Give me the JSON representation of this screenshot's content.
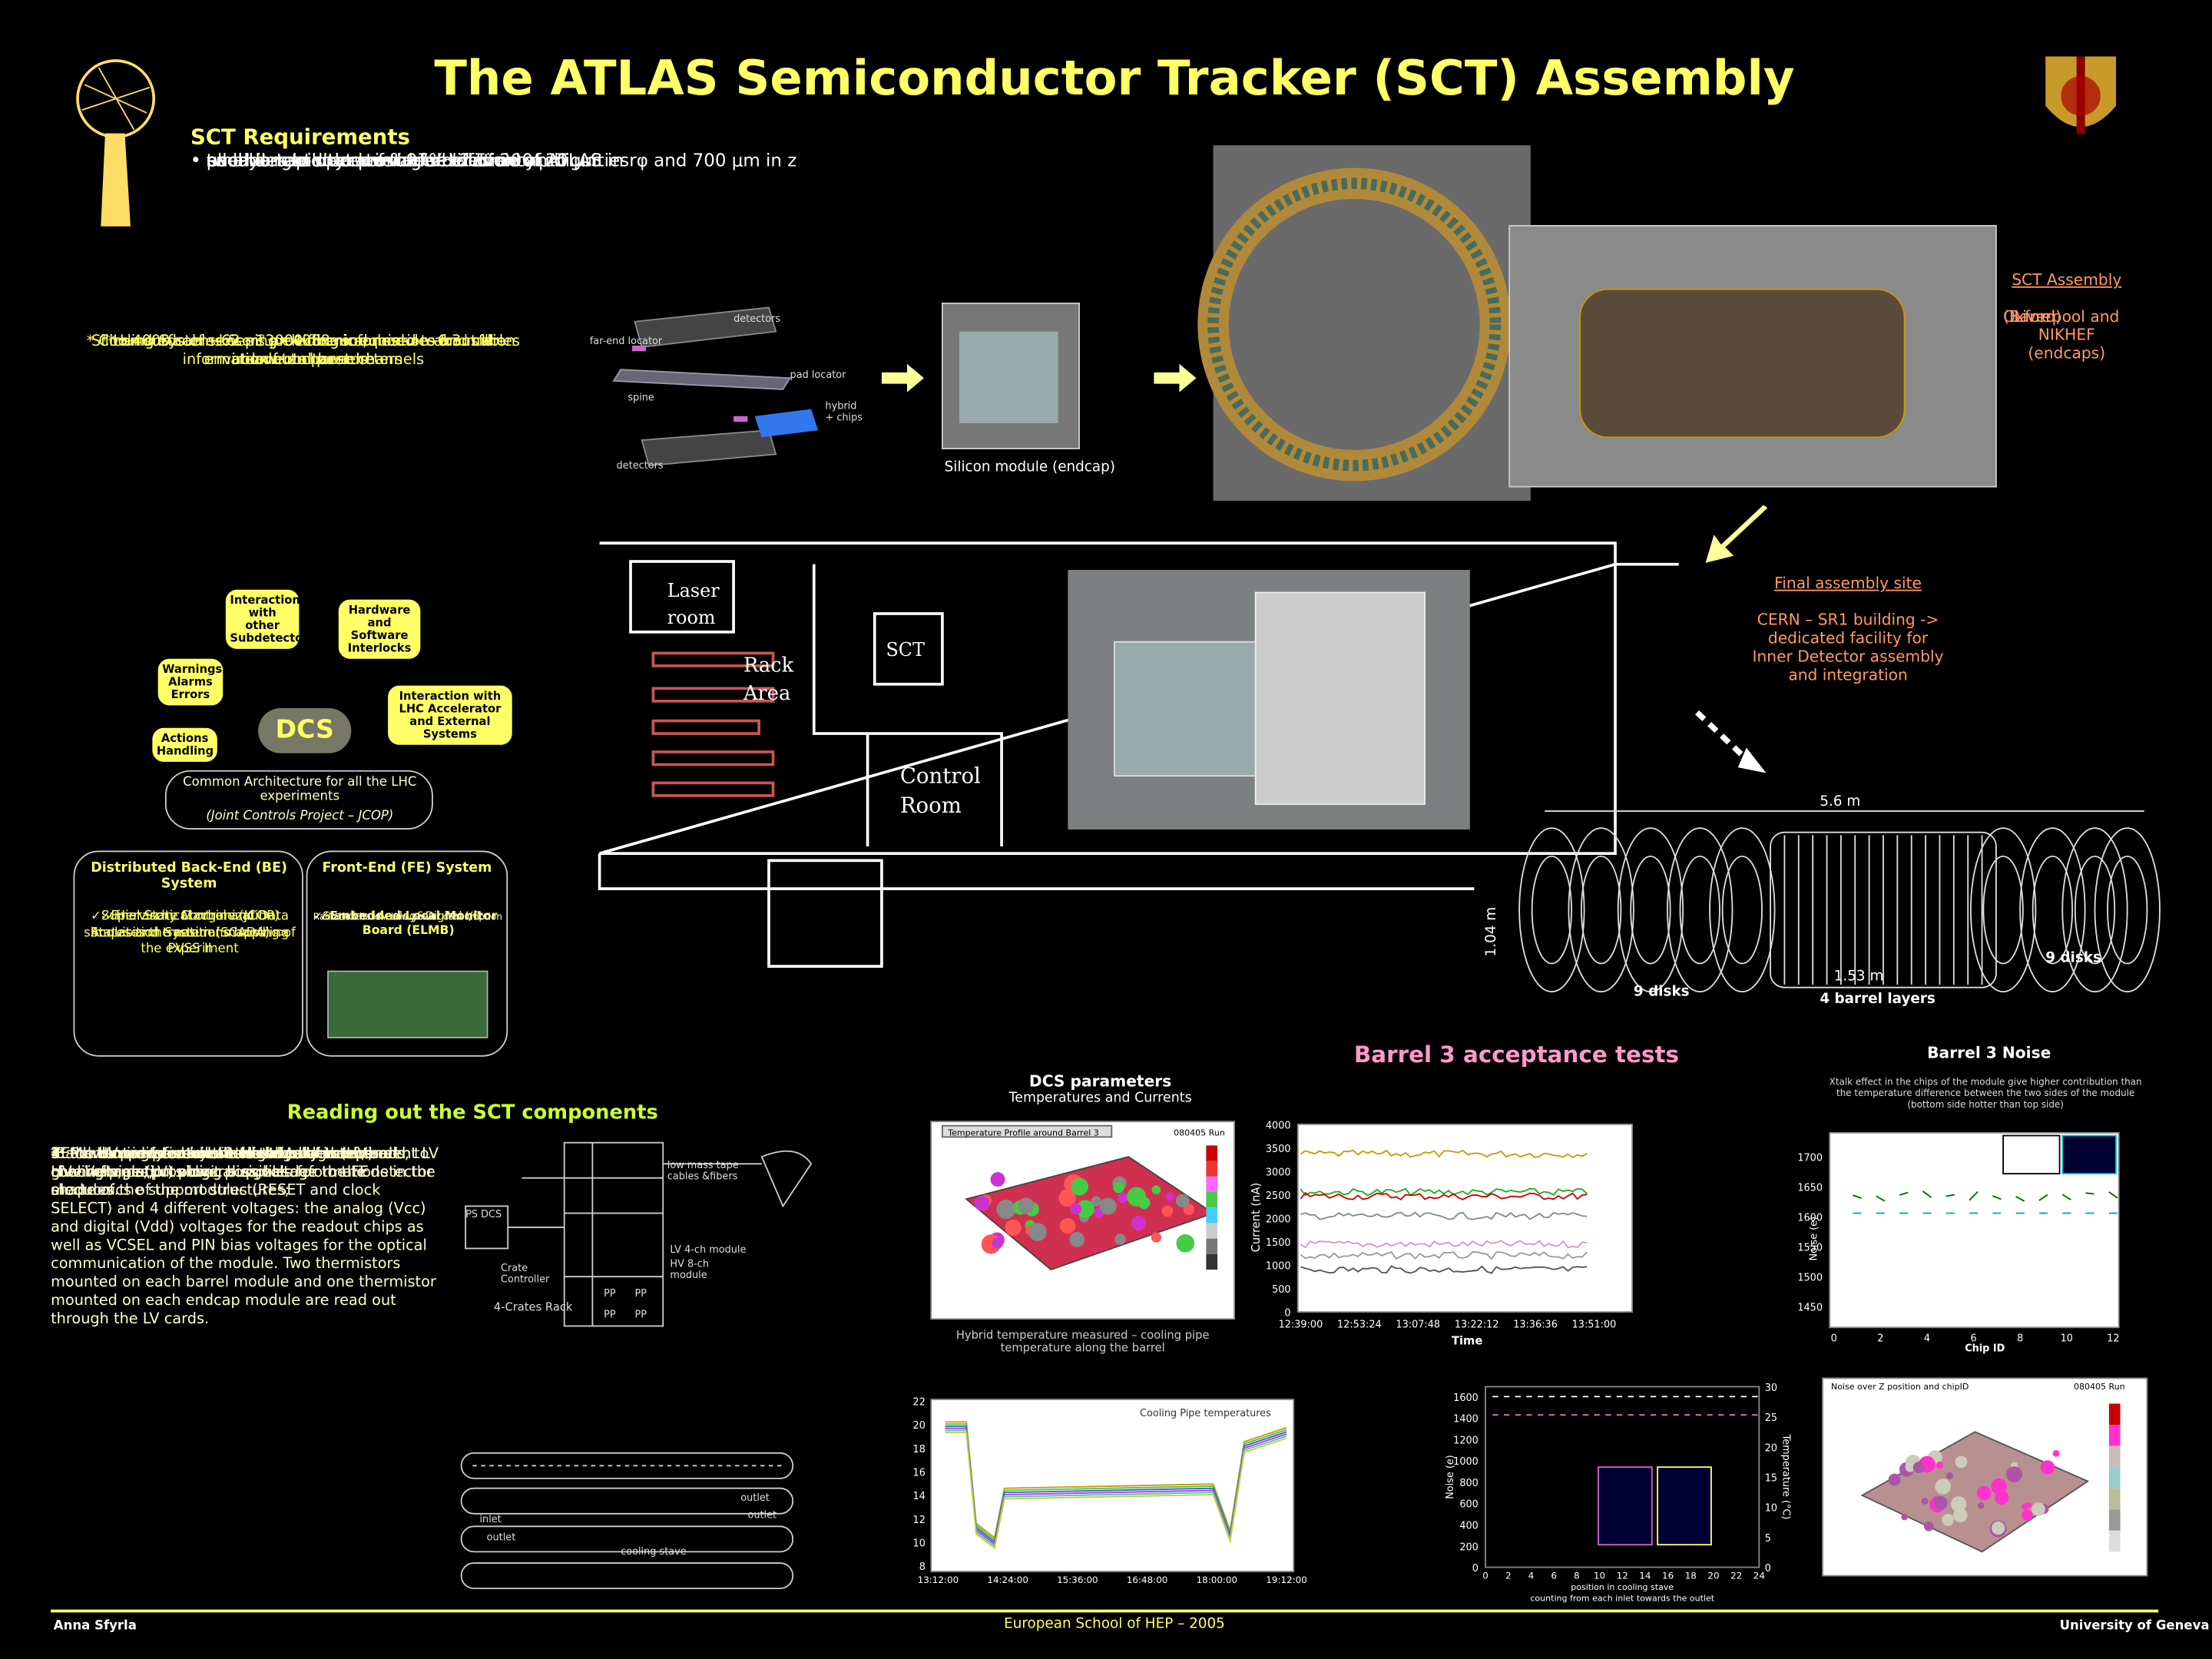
{
  "header": {
    "title": "The ATLAS Semiconductor Tracker (SCT) Assembly"
  },
  "requirements": {
    "heading": "SCT Requirements",
    "items": [
      "• pseudo-rapidity coverage: ±2.5",
      "• small angle stereo in order to avoid ambiguities",
      "• each detector to provide resolution of 20 μm in rφ and 700 μm in z",
      "• two-hit resolution of the order of 200 μm",
      "• each detector at least 97% efficiency",
      "• all layers to operate for full lifetime of ATLAS"
    ]
  },
  "notes": [
    "Silicon surface: ~62 m² -> 4088 modules -> ~6.3 million readout channels",
    "* ~4000 cables & ~13000 fibers required to transfer information from these channels",
    "* Cooling System keeping electronics, modules and cables at low temperature",
    "* Hundreds of sensors providing information about the environmental parameters"
  ],
  "module": {
    "labels": [
      "detectors",
      "far-end locator",
      "pad locator",
      "spine",
      "hybrid + chips",
      "detectors"
    ],
    "caption": "Silicon module (endcap)"
  },
  "sct_assembly": {
    "heading": "SCT Assembly",
    "lines": [
      "Oxford",
      "(Barrel)",
      "Liverpool and NIKHEF (endcaps)"
    ]
  },
  "final_site": {
    "heading": "Final assembly site",
    "text": "CERN – SR1 building -> dedicated facility for Inner Detector assembly and integration"
  },
  "floorplan": {
    "labels": [
      "Laser room",
      "Rack Area",
      "SCT",
      "Control Room"
    ]
  },
  "barrel": {
    "length": "5.6 m",
    "diameter": "1.04 m",
    "barrel_length": "1.53 m",
    "disks_left": "9 disks",
    "disks_right": "9 disks",
    "layers": "4 barrel layers"
  },
  "dcs": {
    "center": "DCS",
    "bubbles": [
      "Interaction with other Subdetectors",
      "Hardware and Software Interlocks",
      "Warnings Alarms Errors",
      "Interaction with LHC Accelerator and External Systems",
      "Actions Handling"
    ],
    "common": [
      "Common Architecture for all the LHC experiments",
      "(Joint Controls Project – JCOP)"
    ],
    "be": {
      "title": "Distributed Back-End (BE) System",
      "items": [
        "✓Supervisory Control and Data Acquisition System (SCADA) -> PVSS II",
        "✓Hierarchical organization simulates the natural mapping of the experiment",
        "✓Final State Machine (JCOP) States and transitions handling"
      ]
    },
    "fe": {
      "title": "Front-End (FE) System",
      "items": [
        "✓Embedded Local Monitor Board (ELMB)",
        "✓Standard Analog&Digital I/O",
        "Radiation hard – Low power consumption"
      ]
    }
  },
  "reading": {
    "heading": "Reading out the SCT components",
    "paragraphs": [
      "** Power provided by the High Voltage (HV) and Low Voltage (LV) power supplies.",
      "- Each LV card controls 4 electrically independent LV channels, outputs logical signals for the FE electronics of the modules (RESET and clock SELECT) and 4 different voltages: the analog (Vcc) and digital (Vdd) voltages for the readout chips as well as VCSEL and PIN bias voltages for the optical communication of the module. Two thermistors mounted on each barrel module and one thermistor mounted on each endcap module are read out through the LV cards.",
      "-Each HV card controls 8 electrically independent HV channels, providing bias voltage to the detector modules.",
      "** Monitoring of environmental parameters:",
      "1. the temperature close to the outlets of the cooling pipes;",
      "2. the temperature near the edge of the barrels, to give information about possible deformations in the shape of the support structures;",
      "3. the air temperature inside the detector; and",
      "4. the humidity inside the detector."
    ],
    "rack_labels": [
      "PS DCS",
      "Crate Controller",
      "4-Crates Rack",
      "low mass tape cables &fibers",
      "LV 4-ch module",
      "HV 8-ch module",
      "PP",
      "PP",
      "PP",
      "PP"
    ],
    "stave_labels": [
      "outlet",
      "outlet",
      "inlet",
      "outlet",
      "cooling stave"
    ]
  },
  "acceptance": {
    "heading": "Barrel 3 acceptance tests",
    "dcs_heading": "DCS parameters",
    "dcs_sub": "Temperatures and Currents",
    "temp_plot": {
      "title": "Temperature Profile around Barrel 3",
      "run": "080405 Run",
      "caption": "Hybrid temperature measured – cooling pipe temperature along the barrel"
    },
    "current_plot": {
      "ylabel": "Current (nA)",
      "xlabel": "Time",
      "yticks": [
        0,
        500,
        1000,
        1500,
        2000,
        2500,
        3000,
        3500,
        4000
      ],
      "xticks": [
        "12:39:00",
        "12:53:24",
        "13:07:48",
        "13:22:12",
        "13:36:36",
        "13:51:00"
      ]
    },
    "cooling_plot": {
      "title": "Cooling Pipe temperatures",
      "yticks": [
        8,
        10,
        12,
        14,
        16,
        18,
        20,
        22
      ],
      "xticks": [
        "13:12:00",
        "14:24:00",
        "15:36:00",
        "16:48:00",
        "18:00:00",
        "19:12:00"
      ]
    }
  },
  "noise": {
    "heading": "Barrel 3 Noise",
    "note": "Xtalk effect in the chips of the module give higher contribution than the temperature difference between the two sides of the module (bottom side hotter than top side)",
    "chip_plot": {
      "ylabel": "Noise (e)",
      "xlabel": "Chip ID",
      "yticks": [
        1450,
        1500,
        1550,
        1600,
        1650,
        1700
      ],
      "xticks": [
        0,
        2,
        4,
        6,
        8,
        10,
        12
      ]
    },
    "position_plot": {
      "ylabel": "Noise (e)",
      "y2label": "Temperature (°C)",
      "xlabel": "position in cooling stave",
      "xlabel2": "counting from each inlet towards the outlet",
      "yticks": [
        0,
        200,
        400,
        600,
        800,
        1000,
        1200,
        1400,
        1600
      ],
      "y2ticks": [
        0,
        5,
        10,
        15,
        20,
        25,
        30
      ],
      "xticks": [
        0,
        2,
        4,
        6,
        8,
        10,
        12,
        14,
        16,
        18,
        20,
        22,
        24
      ]
    },
    "surface_plot": {
      "title": "Noise over Z position and chipID",
      "run": "080405 Run"
    }
  },
  "footer": {
    "author": "Anna Sfyrla",
    "event": "European School of HEP – 2005",
    "institution": "University of Geneva"
  }
}
